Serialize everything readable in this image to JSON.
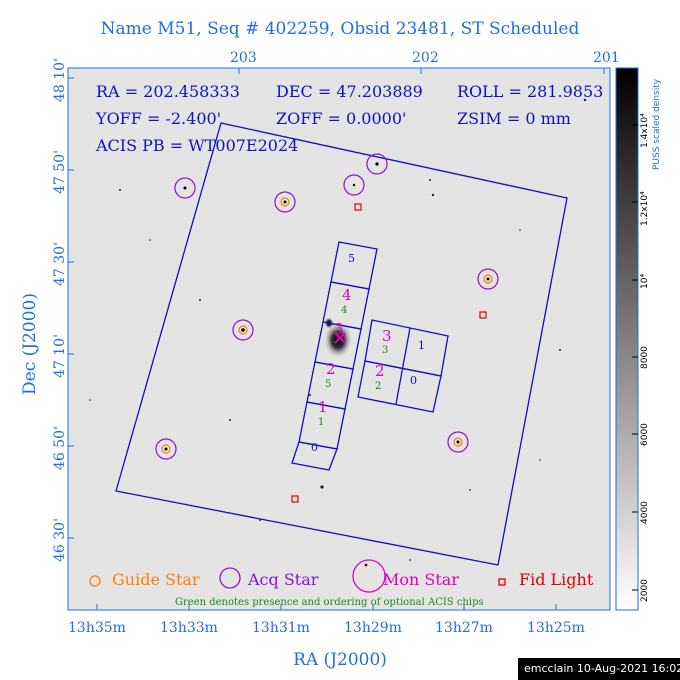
{
  "title": "Name M51, Seq # 402259, Obsid 23481, ST Scheduled",
  "axes": {
    "x_title": "RA (J2000)",
    "y_title": "Dec (J2000)",
    "top_ticks": [
      "203",
      "202",
      "201"
    ],
    "bottom_ticks": [
      "13h35m",
      "13h33m",
      "13h31m",
      "13h29m",
      "13h27m",
      "13h25m"
    ],
    "left_ticks": [
      "48 10'",
      "47 50'",
      "47 30'",
      "47 10'",
      "46 50'",
      "46 30'"
    ]
  },
  "info": {
    "ra": "RA = 202.458333",
    "dec": "DEC = 47.203889",
    "roll": "ROLL = 281.9853",
    "yoff": "YOFF = -2.400'",
    "zoff": "ZOFF = 0.0000'",
    "zsim": "ZSIM = 0 mm",
    "acis": "ACIS PB = WT007E2024"
  },
  "colorbar": {
    "title": "PUSS scaled density",
    "ticks": [
      "2000",
      "4000",
      "6000",
      "8000",
      "10⁴",
      "1.2x10⁴",
      "1.4x10⁴"
    ]
  },
  "chips": {
    "i_numbers": [
      "0",
      "1",
      "2",
      "3"
    ],
    "s_numbers": [
      "0",
      "1",
      "2",
      "3",
      "4",
      "5"
    ],
    "magenta": [
      "1",
      "2",
      "3",
      "4",
      "2",
      "3"
    ],
    "green": [
      "1",
      "5",
      "4",
      "2",
      "3"
    ]
  },
  "legend": {
    "guide": "Guide Star",
    "acq": "Acq Star",
    "mon": "Mon Star",
    "fid": "Fid Light"
  },
  "note": "Green denotes presence and ordering of optional ACIS chips",
  "stamp": "emcclain 10-Aug-2021 16:02",
  "colors": {
    "axis": "#1e6fe0",
    "frame": "#1010c0",
    "guide": "#ff8000",
    "acq": "#9010d0",
    "mon": "#e000c0",
    "fid": "#e00000",
    "optional": "#1a8a1a"
  }
}
